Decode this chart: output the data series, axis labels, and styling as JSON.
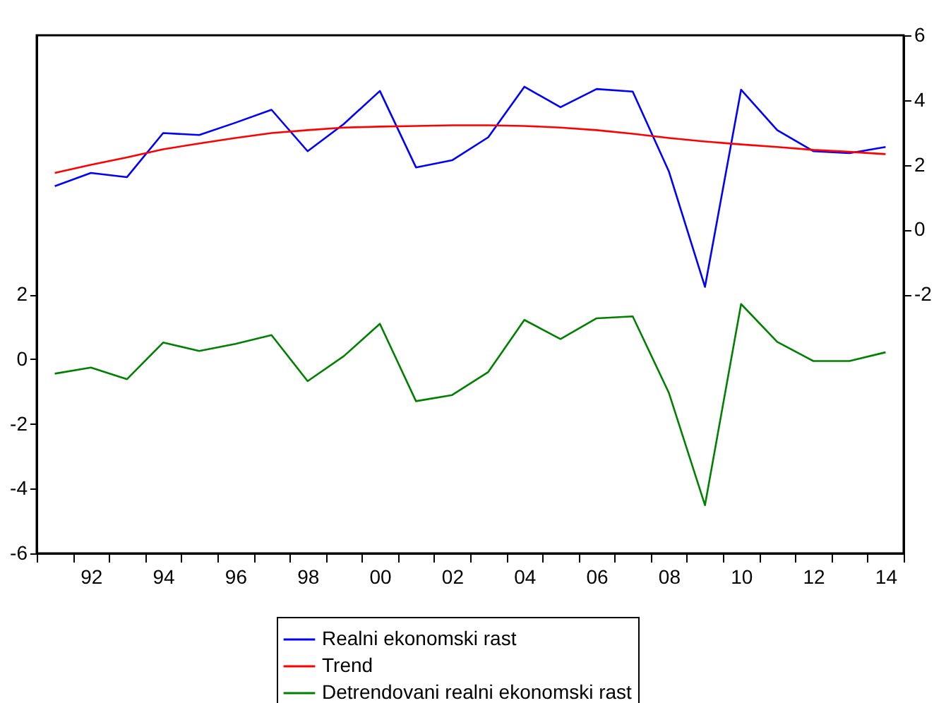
{
  "chart_data": {
    "type": "line",
    "categories": [
      null,
      "92",
      null,
      "94",
      null,
      "96",
      null,
      "98",
      null,
      "00",
      null,
      "02",
      null,
      "04",
      null,
      "06",
      null,
      "08",
      null,
      "10",
      null,
      "12",
      null,
      "14"
    ],
    "series": [
      {
        "name": "Realni ekonomski rast",
        "color": "#0000ff",
        "axis": "y2",
        "values": [
          1.34,
          1.75,
          1.62,
          2.98,
          2.92,
          3.3,
          3.7,
          2.42,
          3.26,
          4.28,
          1.92,
          2.14,
          2.85,
          4.41,
          3.78,
          4.34,
          4.26,
          1.8,
          -1.77,
          4.32,
          3.07,
          2.42,
          2.36,
          2.55
        ]
      },
      {
        "name": "Trend",
        "color": "#ff0000",
        "axis": "y2",
        "values": [
          1.75,
          2.0,
          2.23,
          2.48,
          2.66,
          2.83,
          2.98,
          3.07,
          3.15,
          3.18,
          3.2,
          3.22,
          3.22,
          3.2,
          3.15,
          3.07,
          2.96,
          2.83,
          2.72,
          2.63,
          2.55,
          2.46,
          2.4,
          2.33
        ]
      },
      {
        "name": "Detrendovani realni ekonomski rast",
        "color": "#008000",
        "axis": "y",
        "values": [
          -0.45,
          -0.26,
          -0.62,
          0.51,
          0.25,
          0.47,
          0.74,
          -0.68,
          0.09,
          1.09,
          -1.3,
          -1.11,
          -0.4,
          1.21,
          0.62,
          1.26,
          1.32,
          -1.04,
          -4.51,
          1.7,
          0.53,
          -0.06,
          -0.06,
          0.21
        ]
      }
    ],
    "ylim": [
      -6,
      10
    ],
    "yticks": [
      -6,
      -4,
      -2,
      0,
      2
    ],
    "y2lim": [
      -10,
      6
    ],
    "y2ticks": [
      -2,
      0,
      2,
      4,
      6
    ],
    "grid": false,
    "legend": "bottom"
  }
}
